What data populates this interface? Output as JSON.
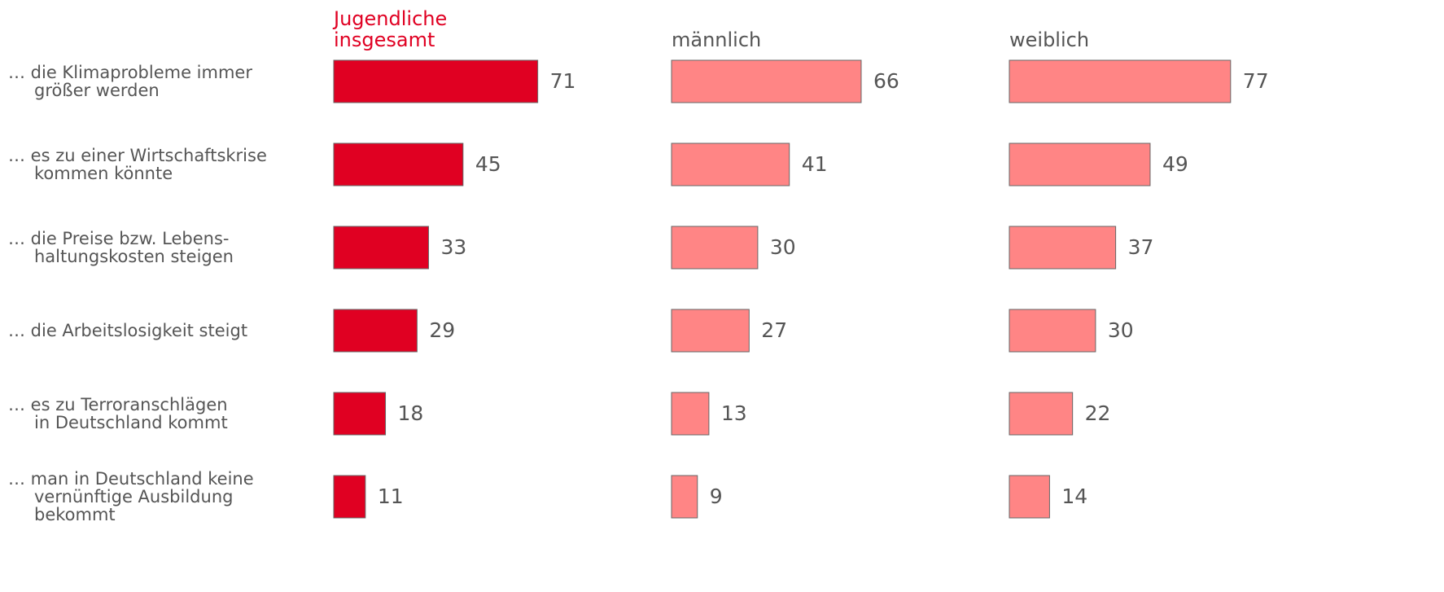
{
  "chart_data": {
    "type": "bar",
    "categories": [
      "… die Klimaprobleme immer\ngrößer werden",
      "… es zu einer Wirtschaftskrise\nkommen könnte",
      "… die Preise bzw. Lebens-\nhaltungskosten steigen",
      "… die Arbeitslosigkeit steigt",
      "… es zu Terroranschlägen\nin Deutschland kommt",
      "… man in Deutschland keine\nvernünftige Ausbildung\nbekommt"
    ],
    "series": [
      {
        "name": "Jugendliche\ninsgesamt",
        "color": "#e00022",
        "label_color": "#e00022",
        "values": [
          71,
          45,
          33,
          29,
          18,
          11
        ]
      },
      {
        "name": "männlich",
        "color": "#ff8585",
        "label_color": "#555555",
        "values": [
          66,
          41,
          30,
          27,
          13,
          9
        ]
      },
      {
        "name": "weiblich",
        "color": "#ff8585",
        "label_color": "#555555",
        "values": [
          77,
          49,
          37,
          30,
          22,
          14
        ]
      }
    ],
    "xlim": [
      0,
      100
    ]
  }
}
